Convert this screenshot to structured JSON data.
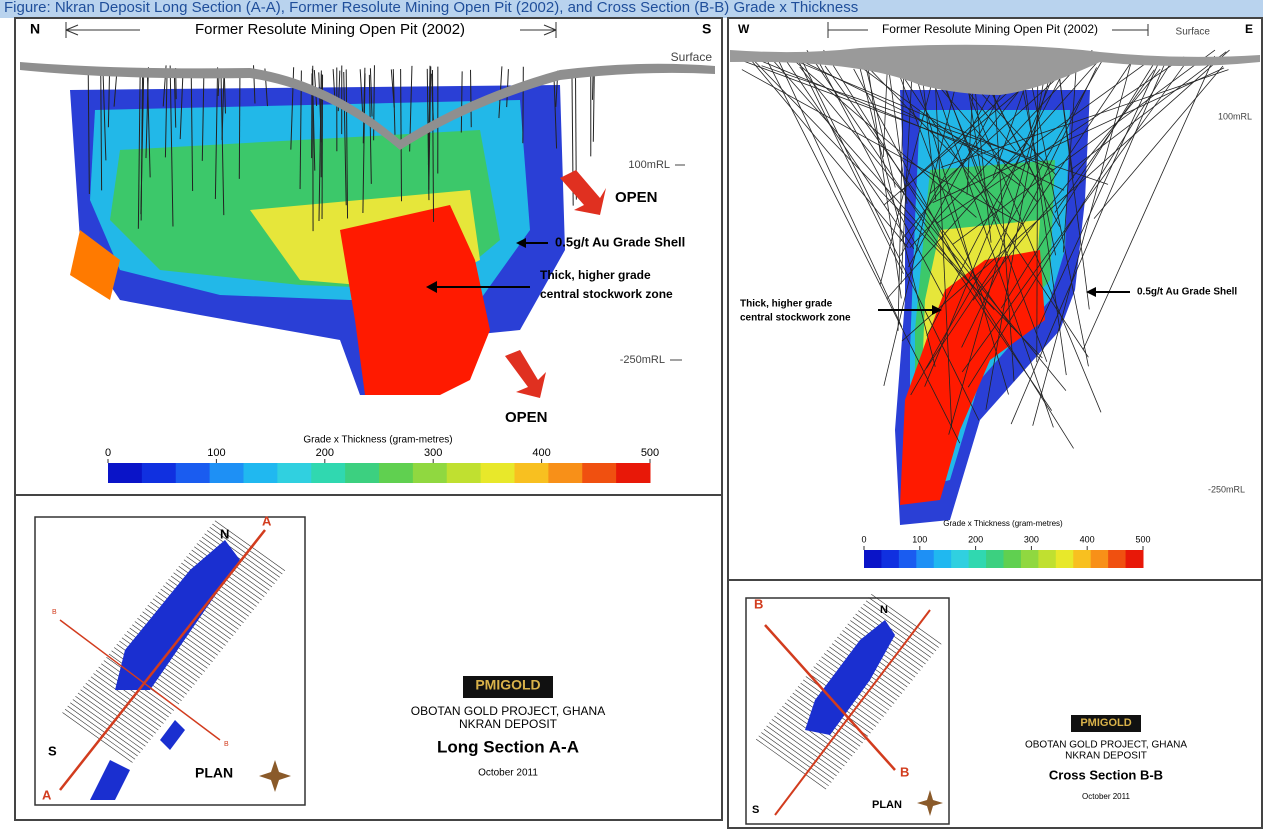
{
  "caption": "Figure: Nkran Deposit Long Section (A-A), Former Resolute Mining Open Pit (2002), and Cross Section (B-B) Grade x Thickness",
  "long_section": {
    "north": "N",
    "south": "S",
    "pit_label": "Former Resolute Mining Open Pit (2002)",
    "surface": "Surface",
    "rl_upper": "100mRL",
    "rl_lower": "-250mRL",
    "open_upper": "OPEN",
    "open_lower": "OPEN",
    "shell_label": "0.5g/t Au Grade Shell",
    "zone_label": [
      "Thick, higher grade",
      "central stockwork zone"
    ],
    "scale": {
      "title": "Grade x Thickness (gram-metres)",
      "ticks": [
        0,
        100,
        200,
        300,
        400,
        500
      ]
    },
    "plan": {
      "north": "N",
      "south": "S",
      "section_end_a": "A",
      "section_end_b": "A",
      "cross_end_a": "B",
      "cross_end_b": "B",
      "label": "PLAN"
    },
    "title_block": {
      "logo": "PMIGOLD",
      "project": "OBOTAN GOLD PROJECT, GHANA",
      "deposit": "NKRAN DEPOSIT",
      "section": "Long Section A-A",
      "date": "October 2011"
    }
  },
  "cross_section": {
    "west": "W",
    "east": "E",
    "pit_label": "Former Resolute Mining Open Pit (2002)",
    "surface": "Surface",
    "rl_upper": "100mRL",
    "rl_lower": "-250mRL",
    "shell_label": "0.5g/t Au Grade Shell",
    "zone_label": [
      "Thick, higher grade",
      "central stockwork zone"
    ],
    "scale": {
      "title": "Grade x Thickness (gram-metres)",
      "ticks": [
        0,
        100,
        200,
        300,
        400,
        500
      ]
    },
    "plan": {
      "north": "N",
      "south": "S",
      "cross_end_a": "B",
      "cross_end_b": "B",
      "label": "PLAN"
    },
    "title_block": {
      "logo": "PMIGOLD",
      "project": "OBOTAN GOLD PROJECT, GHANA",
      "deposit": "NKRAN DEPOSIT",
      "section": "Cross Section B-B",
      "date": "October 2011"
    }
  }
}
